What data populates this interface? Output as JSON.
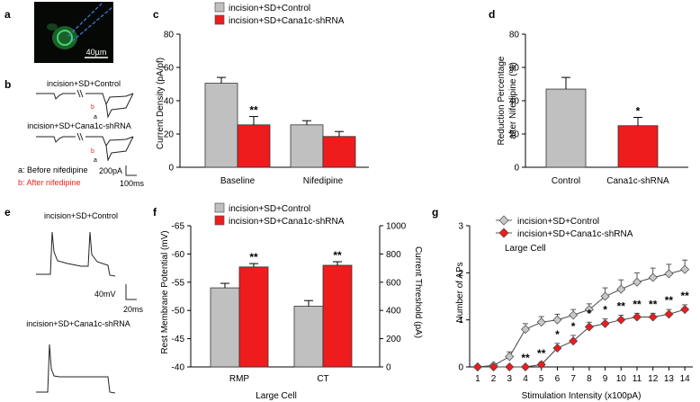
{
  "panels": {
    "a": {
      "letter": "a",
      "scale_label": "40µm",
      "colors": {
        "background": "#050805",
        "cell": "#35c05a",
        "electrode": "#3b78d8",
        "scale_bar": "#ffffff"
      }
    },
    "b": {
      "letter": "b",
      "control_label": "incision+SD+Control",
      "shrna_label": "incision+SD+Cana1c-shRNA",
      "mark_a": "a",
      "mark_b": "b",
      "legend_a": "a: Before nifedipine",
      "legend_b": "b: After nifedipine",
      "scale_y": "200pA",
      "scale_x": "100ms",
      "mark_b_color": "#e8251f"
    },
    "c": {
      "letter": "c"
    },
    "d": {
      "letter": "d"
    },
    "e": {
      "letter": "e",
      "control_label": "incision+SD+Control",
      "shrna_label": "incision+SD+Cana1c-shRNA",
      "scale_y": "40mV",
      "scale_x": "20ms"
    },
    "f": {
      "letter": "f"
    },
    "g": {
      "letter": "g"
    }
  },
  "colors": {
    "control": "#c0c0c0",
    "shrna": "#ee1c1c",
    "edge": "#333333",
    "trace": "#222222"
  },
  "chart_data": [
    {
      "id": "c",
      "type": "bar",
      "title": "",
      "ylabel": "Current Density (pA/pf)",
      "xlabel": "",
      "ylim": [
        0,
        80
      ],
      "yticks": [
        "0",
        "20",
        "40",
        "60",
        "80"
      ],
      "categories": [
        "Baseline",
        "Nifedipine"
      ],
      "series": [
        {
          "name": "incision+SD+Control",
          "values": [
            50.5,
            25.5
          ],
          "errors": [
            3.5,
            2.5
          ]
        },
        {
          "name": "incision+SD+Cana1c-shRNA",
          "values": [
            25.5,
            18.5
          ],
          "errors": [
            5.0,
            3.0
          ]
        }
      ],
      "annotations": [
        {
          "series": 1,
          "index": 0,
          "text": "**"
        }
      ],
      "legend": "top-left"
    },
    {
      "id": "d",
      "type": "bar",
      "title": "",
      "ylabel_lines": [
        "Reduction Percentage",
        "after Nifedipine (%)"
      ],
      "xlabel": "",
      "ylim": [
        0,
        80
      ],
      "yticks": [
        "0",
        "20",
        "40",
        "60",
        "80"
      ],
      "categories": [
        "Control",
        "Cana1c-shRNA"
      ],
      "values": [
        47,
        25
      ],
      "errors": [
        7,
        5
      ],
      "annotations": [
        {
          "index": 1,
          "text": "*"
        }
      ]
    },
    {
      "id": "f",
      "type": "bar",
      "title": "",
      "xlabel": "Large Cell",
      "ylabel": "Rest Membrane Potential (mV)",
      "ylabel_right": "Current Threshold (pA)",
      "ylim": [
        -40,
        -65
      ],
      "yticks": [
        "-40",
        "-45",
        "-50",
        "-55",
        "-60",
        "-65"
      ],
      "ylim_right": [
        0,
        1000
      ],
      "yticks_right": [
        "0",
        "200",
        "400",
        "600",
        "800",
        "1000"
      ],
      "categories": [
        "RMP",
        "CT"
      ],
      "series": [
        {
          "name": "incision+SD+Control",
          "values": [
            -54,
            430
          ],
          "errors": [
            0.8,
            40
          ]
        },
        {
          "name": "incision+SD+Cana1c-shRNA",
          "values": [
            -57.7,
            720
          ],
          "errors": [
            0.6,
            25
          ]
        }
      ],
      "annotations": [
        {
          "series": 1,
          "index": 0,
          "text": "**"
        },
        {
          "series": 1,
          "index": 1,
          "text": "**"
        }
      ],
      "legend": "top"
    },
    {
      "id": "g",
      "type": "line",
      "title": "",
      "inner_label": "Large Cell",
      "xlabel": "Stimulation Intensity (x100pA)",
      "ylabel": "Number of APs",
      "xlim": [
        0.5,
        14.5
      ],
      "ylim": [
        0,
        3
      ],
      "x": [
        1,
        2,
        3,
        4,
        5,
        6,
        7,
        8,
        9,
        10,
        11,
        12,
        13,
        14
      ],
      "xticks": [
        "1",
        "2",
        "3",
        "4",
        "5",
        "6",
        "7",
        "8",
        "9",
        "10",
        "11",
        "12",
        "13",
        "14"
      ],
      "yticks": [
        "0",
        "1",
        "2",
        "3"
      ],
      "series": [
        {
          "name": "incision+SD+Control",
          "marker": "diamond",
          "values": [
            0,
            0.03,
            0.22,
            0.8,
            0.95,
            1.0,
            1.1,
            1.22,
            1.5,
            1.65,
            1.8,
            1.9,
            1.98,
            2.07
          ],
          "errors": [
            0,
            0.04,
            0.1,
            0.12,
            0.12,
            0.12,
            0.12,
            0.12,
            0.18,
            0.2,
            0.2,
            0.2,
            0.2,
            0.2
          ]
        },
        {
          "name": "incision+SD+Cana1c-shRNA",
          "marker": "diamond",
          "values": [
            0,
            0,
            0,
            0,
            0.05,
            0.4,
            0.55,
            0.85,
            0.92,
            1.0,
            1.06,
            1.06,
            1.12,
            1.22
          ],
          "errors": [
            0,
            0,
            0,
            0,
            0.05,
            0.1,
            0.12,
            0.1,
            0.1,
            0.1,
            0.08,
            0.08,
            0.1,
            0.1
          ]
        }
      ],
      "annotations": [
        {
          "x": 4,
          "text": "**"
        },
        {
          "x": 5,
          "text": "**"
        },
        {
          "x": 6,
          "text": "*"
        },
        {
          "x": 7,
          "text": "*"
        },
        {
          "x": 8,
          "text": "*"
        },
        {
          "x": 9,
          "text": "*"
        },
        {
          "x": 10,
          "text": "**"
        },
        {
          "x": 11,
          "text": "**"
        },
        {
          "x": 12,
          "text": "**"
        },
        {
          "x": 13,
          "text": "**"
        },
        {
          "x": 14,
          "text": "**"
        }
      ],
      "legend": "top-left"
    }
  ]
}
